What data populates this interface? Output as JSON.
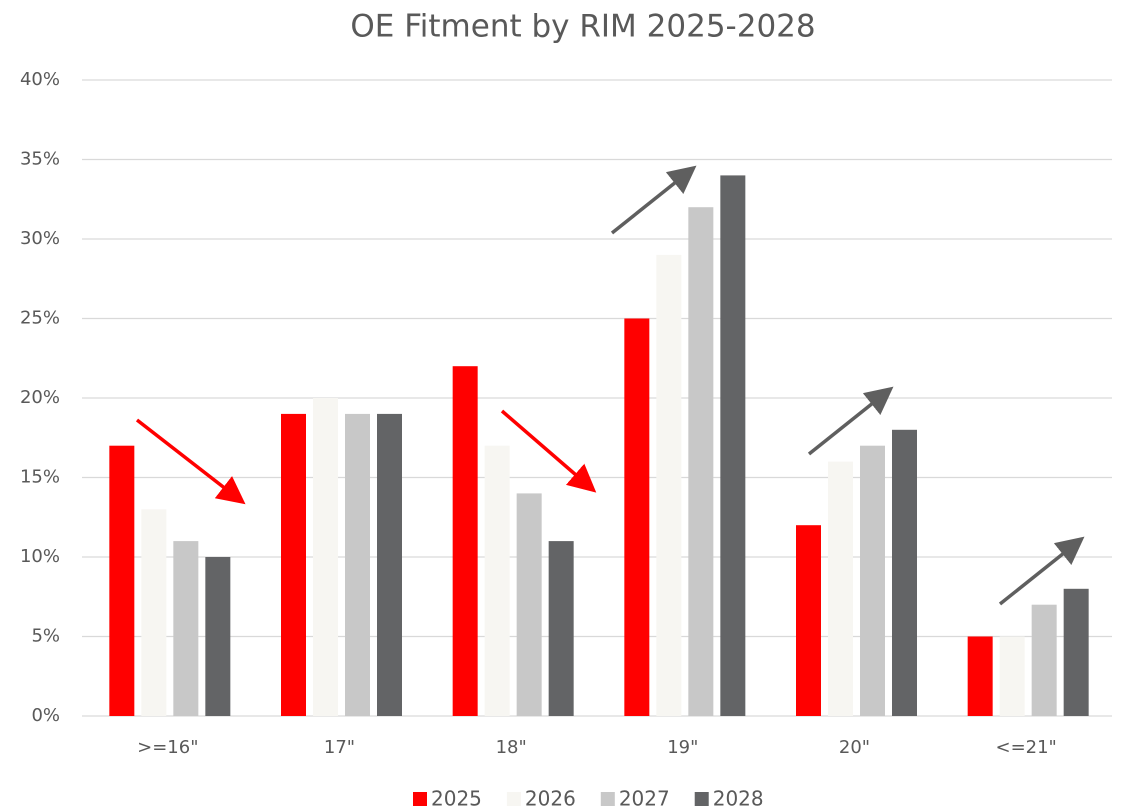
{
  "chart_data": {
    "type": "bar",
    "title": "OE Fitment by RIM 2025-2028",
    "categories": [
      ">=16\"",
      "17\"",
      "18\"",
      "19\"",
      "20\"",
      "<=21\""
    ],
    "series": [
      {
        "name": "2025",
        "color": "#ff0000",
        "values": [
          17,
          19,
          22,
          25,
          12,
          5
        ]
      },
      {
        "name": "2026",
        "color": "#f7f6f2",
        "values": [
          13,
          20,
          17,
          29,
          16,
          5
        ]
      },
      {
        "name": "2027",
        "color": "#c8c8c8",
        "values": [
          11,
          19,
          14,
          32,
          17,
          7
        ]
      },
      {
        "name": "2028",
        "color": "#636466",
        "values": [
          10,
          19,
          11,
          34,
          18,
          8
        ]
      }
    ],
    "ylim": [
      0,
      40
    ],
    "yticks": [
      {
        "value": 0,
        "label": "0%"
      },
      {
        "value": 5,
        "label": "5%"
      },
      {
        "value": 10,
        "label": "10%"
      },
      {
        "value": 15,
        "label": "15%"
      },
      {
        "value": 20,
        "label": "20%"
      },
      {
        "value": 25,
        "label": "25%"
      },
      {
        "value": 30,
        "label": "30%"
      },
      {
        "value": 35,
        "label": "35%"
      },
      {
        "value": 40,
        "label": "40%"
      }
    ],
    "grid": true,
    "legend": "bottom"
  }
}
